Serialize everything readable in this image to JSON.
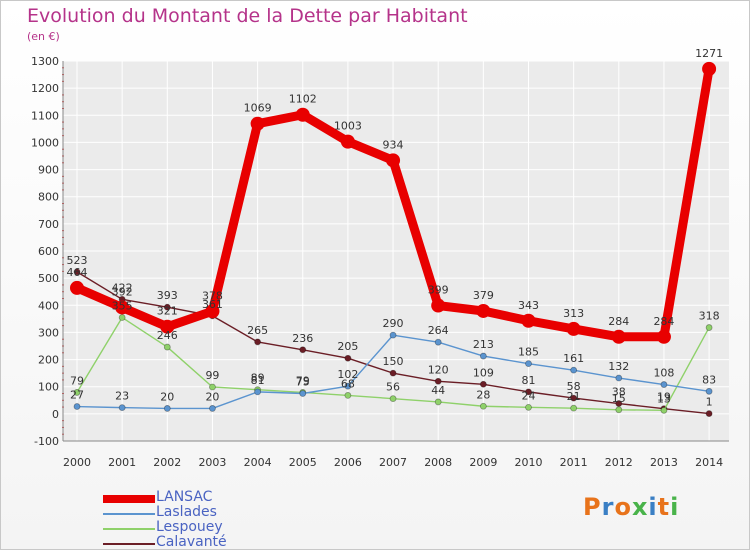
{
  "header": {
    "title": "Evolution du Montant de la Dette par Habitant",
    "subtitle": "(en €)"
  },
  "logo": {
    "text": "Proxiti",
    "letter_colors": [
      "#e8731b",
      "#3a7fc4",
      "#e8731b",
      "#49b34a",
      "#3a7fc4",
      "#e8731b",
      "#49b34a"
    ]
  },
  "colors": {
    "axis_text": "#333333",
    "grid": "#ffffff",
    "plot_bg": "#ebebeb",
    "tick_mark": "#d23a3a"
  },
  "chart_data": {
    "type": "line",
    "title": "Evolution du Montant de la Dette par Habitant",
    "subtitle": "(en €)",
    "xlabel": "",
    "ylabel": "",
    "x": [
      "2000",
      "2001",
      "2002",
      "2003",
      "2004",
      "2005",
      "2006",
      "2007",
      "2008",
      "2009",
      "2010",
      "2011",
      "2012",
      "2013",
      "2014"
    ],
    "ylim": [
      -100,
      1300
    ],
    "yticks": [
      -100,
      0,
      100,
      200,
      300,
      400,
      500,
      600,
      700,
      800,
      900,
      1000,
      1100,
      1200,
      1300
    ],
    "grid": true,
    "legend_position": "bottom-left",
    "series": [
      {
        "name": "LANSAC",
        "color": "#e80000",
        "values": [
          464,
          392,
          321,
          378,
          1069,
          1102,
          1003,
          934,
          399,
          379,
          343,
          313,
          284,
          284,
          1271
        ]
      },
      {
        "name": "Laslades",
        "color": "#5b94cf",
        "values": [
          27,
          23,
          20,
          20,
          81,
          75,
          102,
          290,
          264,
          213,
          185,
          161,
          132,
          108,
          83
        ]
      },
      {
        "name": "Lespouey",
        "color": "#8fd16a",
        "values": [
          79,
          355,
          246,
          99,
          89,
          79,
          68,
          56,
          44,
          28,
          24,
          21,
          15,
          13,
          318
        ]
      },
      {
        "name": "Calavanté",
        "color": "#6b1e26",
        "values": [
          523,
          422,
          393,
          361,
          265,
          236,
          205,
          150,
          120,
          109,
          81,
          58,
          38,
          19,
          1
        ]
      }
    ]
  }
}
